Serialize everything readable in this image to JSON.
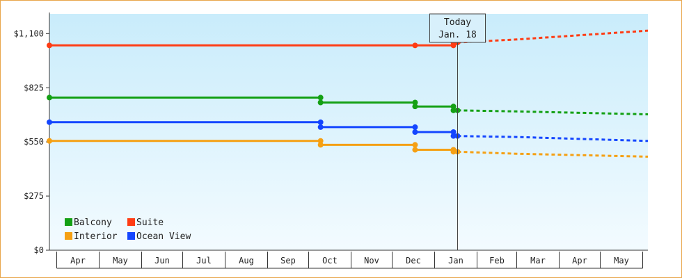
{
  "chart_data": {
    "type": "line",
    "title": "",
    "xlabel": "",
    "ylabel": "",
    "ylim": [
      0,
      1200
    ],
    "y_ticks": [
      {
        "value": 0,
        "label": "$0"
      },
      {
        "value": 275,
        "label": "$275"
      },
      {
        "value": 550,
        "label": "$550"
      },
      {
        "value": 825,
        "label": "$825"
      },
      {
        "value": 1100,
        "label": "$1,100"
      }
    ],
    "x_axis": {
      "start": "2023-03-26",
      "end": "2024-06-05",
      "months": [
        {
          "label": "Apr",
          "start": "2023-03-31",
          "end": "2023-05-01"
        },
        {
          "label": "May",
          "start": "2023-05-01",
          "end": "2023-06-01"
        },
        {
          "label": "Jun",
          "start": "2023-06-01",
          "end": "2023-07-01"
        },
        {
          "label": "Jul",
          "start": "2023-07-01",
          "end": "2023-08-01"
        },
        {
          "label": "Aug",
          "start": "2023-08-01",
          "end": "2023-09-01"
        },
        {
          "label": "Sep",
          "start": "2023-09-01",
          "end": "2023-10-01"
        },
        {
          "label": "Oct",
          "start": "2023-10-01",
          "end": "2023-11-01"
        },
        {
          "label": "Nov",
          "start": "2023-11-01",
          "end": "2023-12-01"
        },
        {
          "label": "Dec",
          "start": "2023-12-01",
          "end": "2024-01-01"
        },
        {
          "label": "Jan",
          "start": "2024-01-01",
          "end": "2024-02-01"
        },
        {
          "label": "Feb",
          "start": "2024-02-01",
          "end": "2024-03-01"
        },
        {
          "label": "Mar",
          "start": "2024-03-01",
          "end": "2024-04-01"
        },
        {
          "label": "Apr",
          "start": "2024-04-01",
          "end": "2024-05-01"
        },
        {
          "label": "May",
          "start": "2024-05-01",
          "end": "2024-06-01"
        }
      ]
    },
    "today": {
      "date": "2024-01-18",
      "label_line1": "Today",
      "label_line2": "Jan. 18"
    },
    "grid": false,
    "legend_position": "bottom-left",
    "series": [
      {
        "name": "Suite",
        "color": "#ff3c14",
        "history": [
          [
            "2023-03-26",
            1040
          ],
          [
            "2023-12-18",
            1040
          ],
          [
            "2023-12-18",
            1040
          ],
          [
            "2024-01-15",
            1040
          ],
          [
            "2024-01-15",
            1055
          ],
          [
            "2024-01-18",
            1055
          ]
        ],
        "forecast": [
          [
            "2024-01-18",
            1055
          ],
          [
            "2024-03-01",
            1070
          ],
          [
            "2024-06-05",
            1115
          ]
        ]
      },
      {
        "name": "Balcony",
        "color": "#14a014",
        "history": [
          [
            "2023-03-26",
            775
          ],
          [
            "2023-10-10",
            775
          ],
          [
            "2023-10-10",
            750
          ],
          [
            "2023-12-18",
            750
          ],
          [
            "2023-12-18",
            730
          ],
          [
            "2024-01-15",
            730
          ],
          [
            "2024-01-15",
            710
          ],
          [
            "2024-01-18",
            710
          ]
        ],
        "forecast": [
          [
            "2024-01-18",
            710
          ],
          [
            "2024-03-01",
            705
          ],
          [
            "2024-06-05",
            690
          ]
        ]
      },
      {
        "name": "Ocean View",
        "color": "#1446ff",
        "history": [
          [
            "2023-03-26",
            650
          ],
          [
            "2023-10-10",
            650
          ],
          [
            "2023-10-10",
            625
          ],
          [
            "2023-12-18",
            625
          ],
          [
            "2023-12-18",
            600
          ],
          [
            "2024-01-15",
            600
          ],
          [
            "2024-01-15",
            580
          ],
          [
            "2024-01-18",
            580
          ]
        ],
        "forecast": [
          [
            "2024-01-18",
            580
          ],
          [
            "2024-03-01",
            575
          ],
          [
            "2024-06-05",
            555
          ]
        ]
      },
      {
        "name": "Interior",
        "color": "#f5a014",
        "history": [
          [
            "2023-03-26",
            555
          ],
          [
            "2023-10-10",
            555
          ],
          [
            "2023-10-10",
            535
          ],
          [
            "2023-12-18",
            535
          ],
          [
            "2023-12-18",
            510
          ],
          [
            "2024-01-15",
            510
          ],
          [
            "2024-01-15",
            500
          ],
          [
            "2024-01-18",
            500
          ]
        ],
        "forecast": [
          [
            "2024-01-18",
            500
          ],
          [
            "2024-03-01",
            490
          ],
          [
            "2024-06-05",
            475
          ]
        ]
      }
    ],
    "markers": {
      "Suite": [
        [
          "2023-03-26",
          1040
        ],
        [
          "2023-12-18",
          1040
        ],
        [
          "2024-01-15",
          1040
        ],
        [
          "2024-01-15",
          1055
        ],
        [
          "2024-01-18",
          1055
        ]
      ],
      "Balcony": [
        [
          "2023-03-26",
          775
        ],
        [
          "2023-10-10",
          775
        ],
        [
          "2023-10-10",
          750
        ],
        [
          "2023-12-18",
          750
        ],
        [
          "2023-12-18",
          730
        ],
        [
          "2024-01-15",
          730
        ],
        [
          "2024-01-15",
          710
        ],
        [
          "2024-01-18",
          710
        ]
      ],
      "Ocean View": [
        [
          "2023-03-26",
          650
        ],
        [
          "2023-10-10",
          650
        ],
        [
          "2023-10-10",
          625
        ],
        [
          "2023-12-18",
          625
        ],
        [
          "2023-12-18",
          600
        ],
        [
          "2024-01-15",
          600
        ],
        [
          "2024-01-15",
          580
        ],
        [
          "2024-01-18",
          580
        ]
      ],
      "Interior": [
        [
          "2023-03-26",
          555
        ],
        [
          "2023-10-10",
          555
        ],
        [
          "2023-10-10",
          535
        ],
        [
          "2023-12-18",
          535
        ],
        [
          "2023-12-18",
          510
        ],
        [
          "2024-01-15",
          510
        ],
        [
          "2024-01-15",
          500
        ],
        [
          "2024-01-18",
          500
        ]
      ]
    },
    "legend": [
      {
        "name": "Balcony",
        "color": "#14a014"
      },
      {
        "name": "Suite",
        "color": "#ff3c14"
      },
      {
        "name": "Interior",
        "color": "#f5a014"
      },
      {
        "name": "Ocean View",
        "color": "#1446ff"
      }
    ]
  }
}
